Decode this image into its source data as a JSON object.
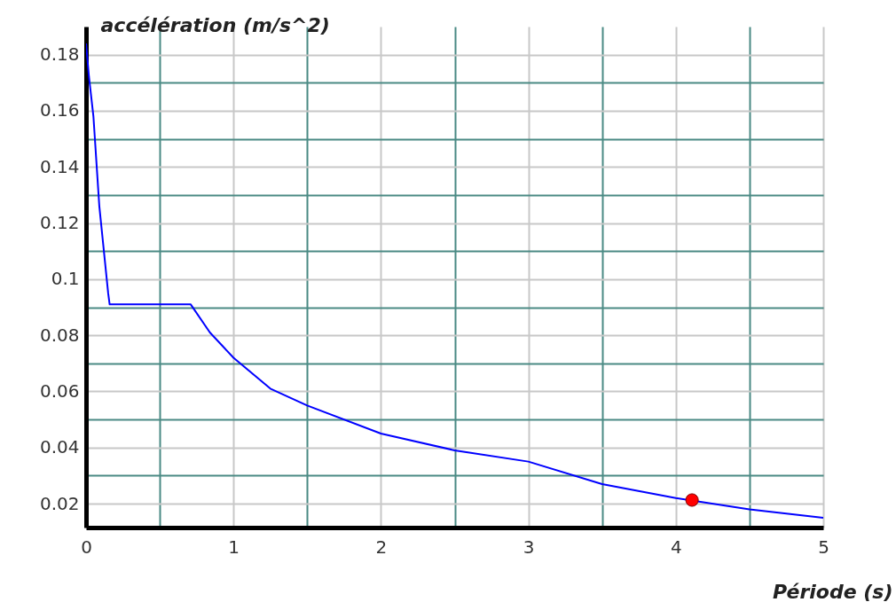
{
  "chart_data": {
    "type": "line",
    "xlabel": "Période (s)",
    "ylabel": "accélération (m/s^2)",
    "xlim": [
      0,
      5
    ],
    "ylim": [
      0.0115,
      0.19
    ],
    "xticks": [
      0,
      {
        "value": 0.5,
        "label": null
      },
      1,
      {
        "value": 1.5,
        "label": null
      },
      2,
      {
        "value": 2.5,
        "label": null
      },
      3,
      {
        "value": 3.5,
        "label": null
      },
      4,
      {
        "value": 4.5,
        "label": null
      },
      5
    ],
    "yticks": [
      0.02,
      {
        "value": 0.03,
        "label": null
      },
      0.04,
      {
        "value": 0.05,
        "label": null
      },
      0.06,
      {
        "value": 0.07,
        "label": null
      },
      0.08,
      {
        "value": 0.09,
        "label": null
      },
      0.1,
      {
        "value": 0.11,
        "label": null
      },
      0.12,
      {
        "value": 0.13,
        "label": null
      },
      0.14,
      {
        "value": 0.15,
        "label": null
      },
      0.16,
      {
        "value": 0.17,
        "label": null
      },
      0.18
    ],
    "grid": true,
    "series": [
      {
        "type": "line",
        "color": "#0000ff",
        "x": [
          0,
          0.02,
          0.05,
          0.09,
          0.15,
          0.16,
          0.71,
          0.84,
          1.0,
          1.25,
          1.5,
          2.0,
          2.5,
          3.0,
          3.5,
          4.0,
          4.5,
          5.0
        ],
        "values": [
          0.184,
          0.172,
          0.158,
          0.126,
          0.095,
          0.091,
          0.091,
          0.081,
          0.072,
          0.061,
          0.055,
          0.045,
          0.039,
          0.035,
          0.027,
          0.022,
          0.018,
          0.015
        ]
      },
      {
        "type": "scatter",
        "color": "#ff0000",
        "marker": "circle",
        "x": [
          4.11
        ],
        "values": [
          0.0213
        ]
      }
    ]
  }
}
